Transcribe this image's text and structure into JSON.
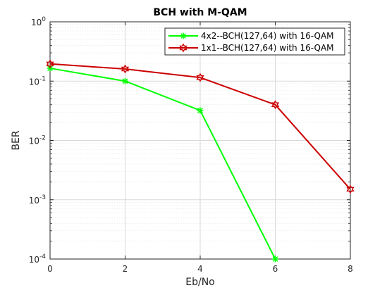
{
  "chart_data": {
    "type": "line",
    "title": "BCH with M-QAM",
    "xlabel": "Eb/No",
    "ylabel": "BER",
    "xlim": [
      0,
      8
    ],
    "ylim": [
      0.0001,
      1
    ],
    "yscale": "log",
    "grid": true,
    "legend_position": "top-right",
    "x_ticks": [
      "0",
      "2",
      "4",
      "6",
      "8"
    ],
    "y_ticks": [
      {
        "base": "10",
        "exp": "-4",
        "value": 0.0001
      },
      {
        "base": "10",
        "exp": "-3",
        "value": 0.001
      },
      {
        "base": "10",
        "exp": "-2",
        "value": 0.01
      },
      {
        "base": "10",
        "exp": "-1",
        "value": 0.1
      },
      {
        "base": "10",
        "exp": "0",
        "value": 1
      }
    ],
    "series": [
      {
        "name": "4x2--BCH(127,64) with 16-QAM",
        "color": "#00ff00",
        "marker": "asterisk",
        "x": [
          0,
          2,
          4,
          6
        ],
        "y": [
          0.165,
          0.1,
          0.032,
          0.0001
        ]
      },
      {
        "name": "1x1--BCH(127,64) with 16-QAM",
        "color": "#cc0000",
        "marker": "hexagram",
        "x": [
          0,
          2,
          4,
          6,
          8
        ],
        "y": [
          0.195,
          0.16,
          0.115,
          0.04,
          0.0015
        ]
      }
    ]
  }
}
